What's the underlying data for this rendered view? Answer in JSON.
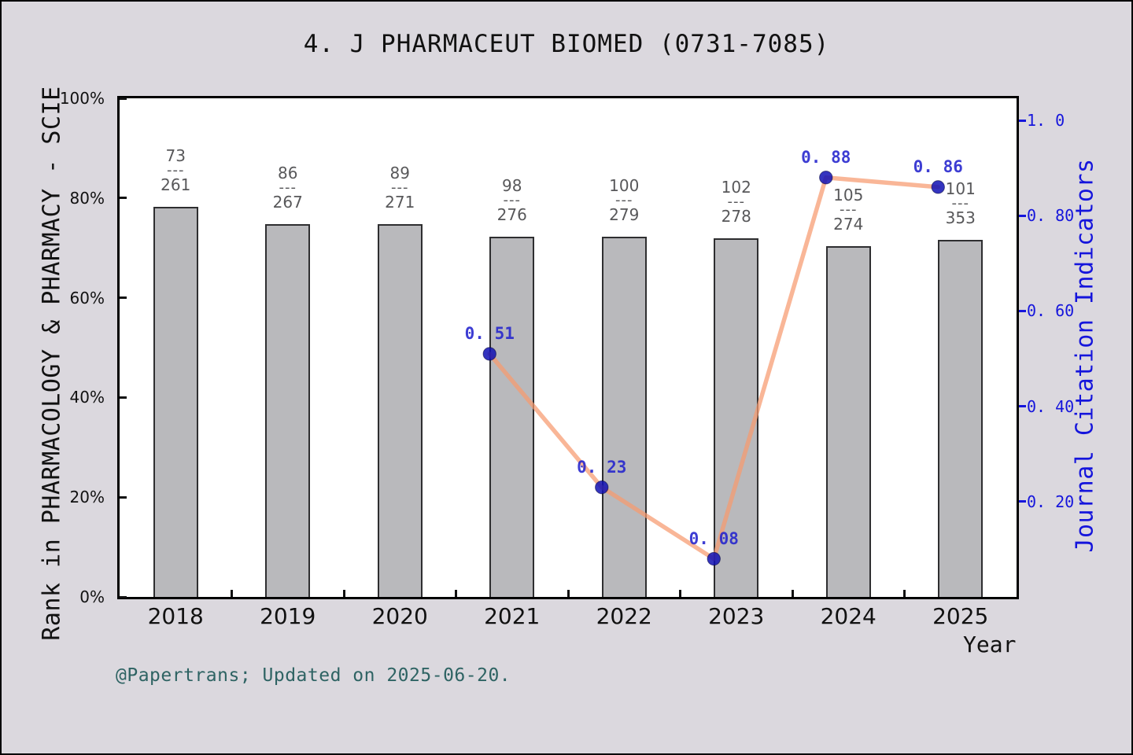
{
  "title": "4. J PHARMACEUT BIOMED (0731-7085)",
  "footer": "@Papertrans; Updated on 2025-06-20.",
  "colors": {
    "background": "#DBD8DE",
    "plot_background": "#FFFFFF",
    "axis_frame": "#000000",
    "bar_fill": "#B9B9BC",
    "bar_border": "#2E2E30",
    "rank_label": "#58585A",
    "line": "#F79A6F",
    "marker": "#1010B4",
    "value_label": "#2323CE",
    "right_axis_blue": "#1515DC",
    "footer_teal": "#2E6363",
    "tick_black": "#111111"
  },
  "chart_data": {
    "type": "bar+line",
    "title": "4. J PHARMACEUT BIOMED (0731-7085)",
    "xlabel": "Year",
    "categories": [
      "2018",
      "2019",
      "2020",
      "2021",
      "2022",
      "2023",
      "2024",
      "2025"
    ],
    "left_axis": {
      "label": "Rank in PHARMACOLOGY & PHARMACY - SCIE",
      "tick_labels": [
        "0%",
        "20%",
        "40%",
        "60%",
        "80%",
        "100%"
      ],
      "tick_values": [
        0,
        20,
        40,
        60,
        80,
        100
      ],
      "range": [
        0,
        100
      ],
      "grid": false
    },
    "right_axis": {
      "label": "Journal Citation Indicators",
      "tick_labels": [
        "0. 20",
        "0. 40",
        "0. 60",
        "0. 80",
        "1. 0"
      ],
      "tick_values": [
        0.2,
        0.4,
        0.6,
        0.8,
        1.0
      ],
      "range": [
        0,
        1.046
      ]
    },
    "bars": {
      "name": "rank-in-category-bars",
      "fraction_separator": "---",
      "rank_labels": [
        {
          "numerator": "73",
          "denominator": "261"
        },
        {
          "numerator": "86",
          "denominator": "267"
        },
        {
          "numerator": "89",
          "denominator": "271"
        },
        {
          "numerator": "98",
          "denominator": "276"
        },
        {
          "numerator": "100",
          "denominator": "279"
        },
        {
          "numerator": "102",
          "denominator": "278"
        },
        {
          "numerator": "105",
          "denominator": "274"
        },
        {
          "numerator": "101",
          "denominator": "353"
        }
      ],
      "height_pct": [
        78.3,
        74.7,
        74.7,
        72.3,
        72.3,
        72.0,
        70.3,
        71.6
      ]
    },
    "line": {
      "name": "journal-citation-indicator-line",
      "categories": [
        "2021",
        "2022",
        "2023",
        "2024",
        "2025"
      ],
      "values": [
        0.51,
        0.23,
        0.08,
        0.88,
        0.86
      ],
      "point_labels": [
        "0. 51",
        "0. 23",
        "0. 08",
        "0. 88",
        "0. 86"
      ]
    }
  }
}
